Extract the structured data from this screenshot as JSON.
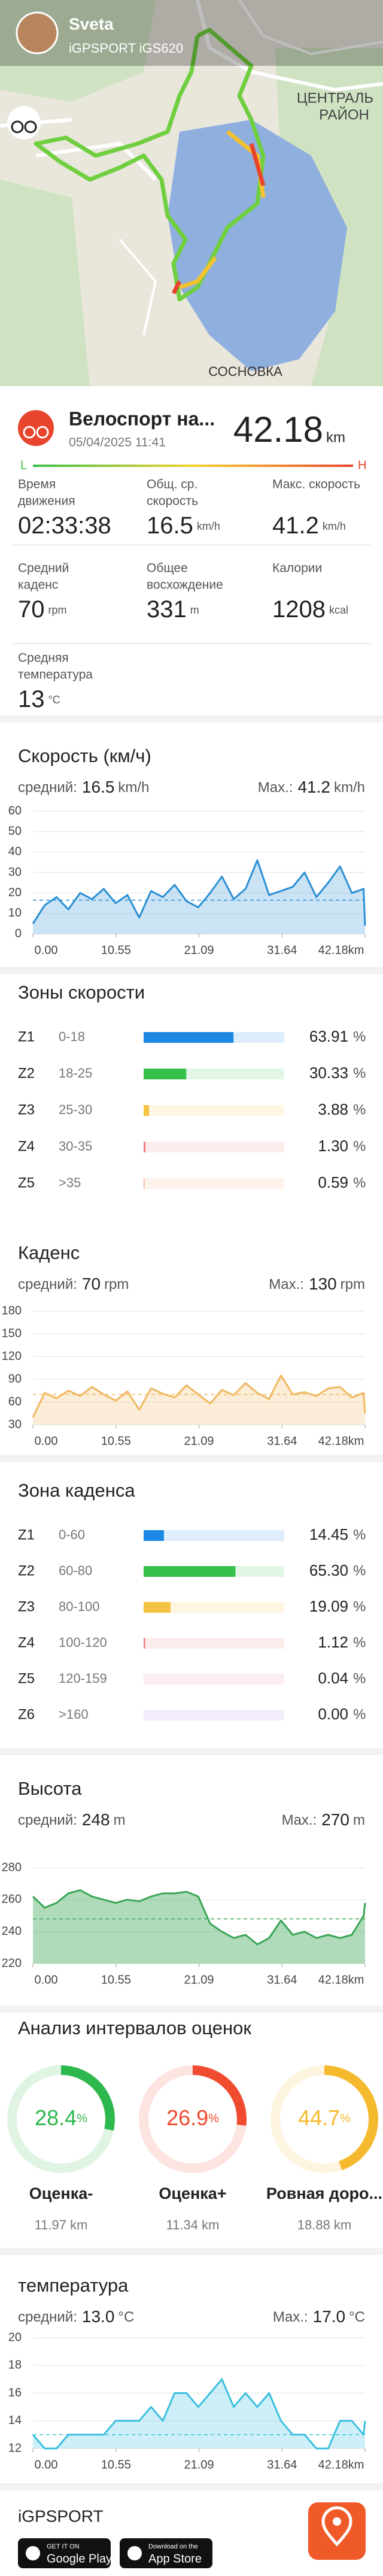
{
  "map": {
    "user": "Sveta",
    "device": "iGPSPORT iGS620",
    "labels": [
      "ЦЕНТРАЛЬ",
      "РАЙОН",
      "СОСНОВКА"
    ]
  },
  "activity": {
    "title": "Велоспорт на...",
    "date": "05/04/2025 11:41",
    "distance": "42.18",
    "distance_unit": "km",
    "scale_low": "L",
    "scale_high": "H"
  },
  "stats": [
    {
      "label": [
        "Время",
        "движения"
      ],
      "value": "02:33:38"
    },
    {
      "label": [
        "Общ. ср.",
        "скорость"
      ],
      "value": "16.5",
      "unit": "km/h"
    },
    {
      "label": [
        "Макс. скорость"
      ],
      "value": "41.2",
      "unit": "km/h"
    },
    {
      "label": [
        "Средний",
        "каденс"
      ],
      "value": "70",
      "unit": "rpm"
    },
    {
      "label": [
        "Общее",
        "восхождение"
      ],
      "value": "331",
      "unit": "m"
    },
    {
      "label": [
        "Калории"
      ],
      "value": "1208",
      "unit": "kcal"
    },
    {
      "label": [
        "Средняя",
        "температура"
      ],
      "value": "13",
      "unit": "°C"
    }
  ],
  "speed_zones": {
    "title": "Зоны скорости",
    "zones": [
      "Z1",
      "Z2",
      "Z3",
      "Z4",
      "Z5"
    ],
    "ranges": [
      "0-18",
      "18-25",
      "25-30",
      "30-35",
      ">35"
    ],
    "values": [
      63.91,
      30.33,
      3.88,
      1.3,
      0.59
    ],
    "value_labels": [
      "63.91",
      "30.33",
      "3.88",
      "1.30",
      "0.59"
    ],
    "unit": "%",
    "xlim": [
      0,
      100
    ],
    "colors": [
      "#1e88e5",
      "#34c04a",
      "#f5c242",
      "#f08080",
      "#f4a582"
    ]
  },
  "cadence_zones": {
    "title": "Зона каденса",
    "zones": [
      "Z1",
      "Z2",
      "Z3",
      "Z4",
      "Z5",
      "Z6"
    ],
    "ranges": [
      "0-60",
      "60-80",
      "80-100",
      "100-120",
      "120-159",
      ">160"
    ],
    "values": [
      14.45,
      65.3,
      19.09,
      1.12,
      0.04,
      0
    ],
    "value_labels": [
      "14.45",
      "65.30",
      "19.09",
      "1.12",
      "0.04",
      "0.00"
    ],
    "unit": "%",
    "xlim": [
      0,
      100
    ],
    "colors": [
      "#1e88e5",
      "#34c04a",
      "#f5c242",
      "#f08080",
      "#f08fb0",
      "#b48ee8"
    ]
  },
  "intervals": {
    "title": "Анализ интервалов оценок",
    "unit": "%",
    "items": [
      {
        "name": "Оценка-",
        "value": 28.4,
        "distance": "11.97 km",
        "color": "#2db84d"
      },
      {
        "name": "Оценка+",
        "value": 26.9,
        "distance": "11.34 km",
        "color": "#f04a2f"
      },
      {
        "name": "Ровная доро...",
        "value": 44.7,
        "distance": "18.88 km",
        "color": "#f5b92e"
      }
    ]
  },
  "footer": {
    "brand": "iGPSPORT",
    "google_top": "GET IT ON",
    "google": "Google Play",
    "apple_top": "Download on the",
    "apple": "App Store"
  },
  "chart_data": [
    {
      "type": "line",
      "title": "Скорость (км/ч)",
      "average_label": "средний:",
      "average": 16.5,
      "max_label": "Max.:",
      "max": 41.2,
      "unit": "km/h",
      "color": "#2a8fd6",
      "x": [
        0,
        1.5,
        3,
        4.5,
        6,
        7.5,
        9,
        10.5,
        12,
        13.5,
        15,
        16.5,
        18,
        19.5,
        21,
        22.5,
        24,
        25.5,
        27,
        28.5,
        30,
        31.5,
        33,
        34.5,
        36,
        37.5,
        39,
        40.5,
        42,
        42.18
      ],
      "values": [
        5,
        14,
        18,
        12,
        20,
        17,
        22,
        15,
        19,
        8,
        21,
        18,
        24,
        16,
        13,
        20,
        28,
        17,
        22,
        36,
        19,
        21,
        23,
        30,
        18,
        25,
        33,
        20,
        22,
        4
      ],
      "xlim": [
        0,
        42.18
      ],
      "xticks": [
        {
          "value": 0,
          "label": "0.00"
        },
        10.55,
        21.09,
        31.64,
        {
          "value": 42.18,
          "label": "42.18km"
        }
      ],
      "ylim": [
        0,
        60
      ],
      "yticks": [
        0,
        10,
        20,
        30,
        40,
        50,
        60
      ],
      "grid": true
    },
    {
      "type": "line",
      "title": "Каденс",
      "average_label": "средний:",
      "average": 70,
      "max_label": "Max.:",
      "max": 130,
      "unit": "rpm",
      "color": "#f0b860",
      "x": [
        0,
        1.5,
        3,
        4.5,
        6,
        7.5,
        9,
        10.5,
        12,
        13.5,
        15,
        16.5,
        18,
        19.5,
        21,
        22.5,
        24,
        25.5,
        27,
        28.5,
        30,
        31.5,
        33,
        34.5,
        36,
        37.5,
        39,
        40.5,
        42,
        42.18
      ],
      "values": [
        40,
        72,
        65,
        75,
        68,
        80,
        70,
        62,
        74,
        50,
        78,
        71,
        66,
        82,
        70,
        58,
        76,
        69,
        85,
        72,
        64,
        95,
        70,
        73,
        68,
        78,
        80,
        66,
        72,
        45
      ],
      "xlim": [
        0,
        42.18
      ],
      "xticks": [
        {
          "value": 0,
          "label": "0.00"
        },
        10.55,
        21.09,
        31.64,
        {
          "value": 42.18,
          "label": "42.18km"
        }
      ],
      "ylim": [
        30,
        180
      ],
      "yticks": [
        30,
        60,
        90,
        120,
        150,
        180
      ],
      "grid": true
    },
    {
      "type": "area",
      "title": "Высота",
      "average_label": "средний:",
      "average": 248,
      "max_label": "Max.:",
      "max": 270,
      "unit": "m",
      "color": "#3aa655",
      "x": [
        0,
        1.5,
        3,
        4.5,
        6,
        7.5,
        9,
        10.5,
        12,
        13.5,
        15,
        16.5,
        18,
        19.5,
        21,
        22.5,
        24,
        25.5,
        27,
        28.5,
        30,
        31.5,
        33,
        34.5,
        36,
        37.5,
        39,
        40.5,
        42,
        42.18
      ],
      "values": [
        262,
        255,
        258,
        264,
        266,
        262,
        260,
        258,
        260,
        259,
        262,
        264,
        264,
        265,
        262,
        245,
        240,
        236,
        238,
        232,
        236,
        247,
        238,
        240,
        236,
        238,
        236,
        238,
        250,
        258
      ],
      "xlim": [
        0,
        42.18
      ],
      "xticks": [
        {
          "value": 0,
          "label": "0.00"
        },
        10.55,
        21.09,
        31.64,
        {
          "value": 42.18,
          "label": "42.18km"
        }
      ],
      "ylim": [
        220,
        280
      ],
      "yticks": [
        220,
        240,
        260,
        280
      ],
      "grid": true
    },
    {
      "type": "line",
      "title": "температура",
      "average_label": "средний:",
      "average": {
        "value": 13,
        "label": "13.0"
      },
      "max_label": "Max.:",
      "max": {
        "value": 17,
        "label": "17.0"
      },
      "unit": "°C",
      "color": "#3cc0e0",
      "x": [
        0,
        1.5,
        3,
        4.5,
        6,
        7.5,
        9,
        10.5,
        12,
        13.5,
        15,
        16.5,
        18,
        19.5,
        21,
        22.5,
        24,
        25.5,
        27,
        28.5,
        30,
        31.5,
        33,
        34.5,
        36,
        37.5,
        39,
        40.5,
        42,
        42.18
      ],
      "values": [
        13,
        12,
        12,
        13,
        13,
        13,
        13,
        14,
        14,
        14,
        15,
        14,
        16,
        16,
        15,
        16,
        17,
        15,
        16,
        15,
        16,
        14,
        13,
        13,
        12,
        12,
        14,
        14,
        13,
        14
      ],
      "xlim": [
        0,
        42.18
      ],
      "xticks": [
        {
          "value": 0,
          "label": "0.00"
        },
        10.55,
        21.09,
        31.64,
        {
          "value": 42.18,
          "label": "42.18km"
        }
      ],
      "ylim": [
        12,
        20
      ],
      "yticks": [
        12,
        14,
        16,
        18,
        20
      ],
      "grid": true
    }
  ]
}
